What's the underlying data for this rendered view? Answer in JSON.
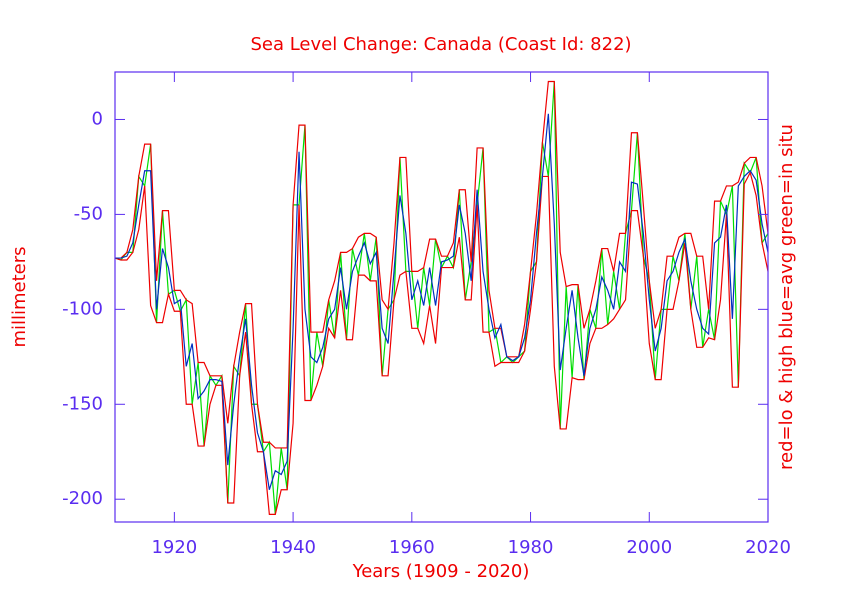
{
  "chart_data": {
    "type": "line",
    "title": "Sea Level Change: Canada (Coast Id: 822)",
    "x_label": "Years (1909 - 2020)",
    "y_label": "millimeters",
    "right_label": "red=lo & high  blue=avg  green=in situ",
    "xlim": [
      1910,
      2020
    ],
    "xticks": [
      1920,
      1940,
      1960,
      1980,
      2000,
      2020
    ],
    "ylim": [
      -212,
      25
    ],
    "yticks": [
      0,
      -50,
      -100,
      -150,
      -200
    ],
    "axis_color": "#5a2df0",
    "x": [
      1910,
      1911,
      1912,
      1913,
      1914,
      1915,
      1916,
      1917,
      1918,
      1919,
      1920,
      1921,
      1922,
      1923,
      1924,
      1925,
      1926,
      1927,
      1928,
      1929,
      1930,
      1931,
      1932,
      1933,
      1934,
      1935,
      1936,
      1937,
      1938,
      1939,
      1940,
      1941,
      1942,
      1943,
      1944,
      1945,
      1946,
      1947,
      1948,
      1949,
      1950,
      1951,
      1952,
      1953,
      1954,
      1955,
      1956,
      1957,
      1958,
      1959,
      1960,
      1961,
      1962,
      1963,
      1964,
      1965,
      1966,
      1967,
      1968,
      1969,
      1970,
      1971,
      1972,
      1973,
      1974,
      1975,
      1976,
      1977,
      1978,
      1979,
      1980,
      1981,
      1982,
      1983,
      1984,
      1985,
      1986,
      1987,
      1988,
      1989,
      1990,
      1991,
      1992,
      1993,
      1994,
      1995,
      1996,
      1997,
      1998,
      1999,
      2000,
      2001,
      2002,
      2003,
      2004,
      2005,
      2006,
      2007,
      2008,
      2009,
      2010,
      2011,
      2012,
      2013,
      2014,
      2015,
      2016,
      2017,
      2018,
      2019,
      2020
    ],
    "series": [
      {
        "color": "#00dd00",
        "values": [
          -73,
          -74,
          -70,
          -70,
          -30,
          -35,
          -13,
          -107,
          -48,
          -92,
          -90,
          -101,
          -95,
          -150,
          -128,
          -172,
          -135,
          -140,
          -135,
          -202,
          -130,
          -135,
          -97,
          -150,
          -150,
          -175,
          -170,
          -208,
          -173,
          -195,
          -45,
          -45,
          -3,
          -148,
          -112,
          -130,
          -95,
          -115,
          -70,
          -116,
          -68,
          -82,
          -60,
          -85,
          -62,
          -135,
          -100,
          -95,
          -20,
          -80,
          -80,
          -110,
          -78,
          -98,
          -63,
          -78,
          -72,
          -78,
          -37,
          -95,
          -75,
          -45,
          -15,
          -112,
          -110,
          -128,
          -125,
          -128,
          -125,
          -122,
          -80,
          -75,
          -12,
          -30,
          20,
          -163,
          -88,
          -136,
          -87,
          -137,
          -100,
          -110,
          -68,
          -108,
          -80,
          -100,
          -60,
          -48,
          -7,
          -72,
          -85,
          -137,
          -100,
          -100,
          -72,
          -85,
          -60,
          -100,
          -72,
          -120,
          -100,
          -116,
          -43,
          -50,
          -35,
          -141,
          -23,
          -28,
          -20,
          -65,
          -60
        ]
      },
      {
        "color": "#ee0000",
        "values": [
          -73,
          -74,
          -74,
          -70,
          -58,
          -35,
          -98,
          -107,
          -107,
          -92,
          -101,
          -101,
          -150,
          -150,
          -172,
          -172,
          -150,
          -140,
          -140,
          -202,
          -202,
          -135,
          -112,
          -150,
          -175,
          -175,
          -208,
          -208,
          -195,
          -195,
          -160,
          -45,
          -148,
          -148,
          -140,
          -130,
          -110,
          -115,
          -90,
          -116,
          -116,
          -82,
          -82,
          -85,
          -85,
          -135,
          -135,
          -95,
          -82,
          -80,
          -110,
          -110,
          -118,
          -98,
          -118,
          -78,
          -78,
          -78,
          -62,
          -95,
          -95,
          -45,
          -112,
          -112,
          -130,
          -128,
          -128,
          -128,
          -128,
          -122,
          -100,
          -75,
          -30,
          -30,
          -130,
          -163,
          -163,
          -136,
          -137,
          -137,
          -118,
          -110,
          -110,
          -108,
          -105,
          -100,
          -95,
          -48,
          -48,
          -72,
          -118,
          -137,
          -137,
          -100,
          -100,
          -85,
          -65,
          -100,
          -120,
          -120,
          -115,
          -116,
          -95,
          -50,
          -141,
          -141,
          -34,
          -28,
          -40,
          -65,
          -80
        ]
      },
      {
        "color": "#ee0000",
        "values": [
          -73,
          -73,
          -70,
          -58,
          -30,
          -13,
          -13,
          -85,
          -48,
          -48,
          -90,
          -90,
          -95,
          -97,
          -128,
          -128,
          -135,
          -135,
          -135,
          -160,
          -130,
          -112,
          -97,
          -97,
          -150,
          -170,
          -170,
          -173,
          -173,
          -173,
          -45,
          -3,
          -3,
          -112,
          -112,
          -112,
          -95,
          -85,
          -70,
          -70,
          -68,
          -62,
          -60,
          -60,
          -62,
          -95,
          -100,
          -65,
          -20,
          -20,
          -80,
          -80,
          -78,
          -63,
          -63,
          -72,
          -72,
          -65,
          -37,
          -37,
          -75,
          -15,
          -15,
          -90,
          -110,
          -110,
          -125,
          -125,
          -125,
          -108,
          -80,
          -50,
          -12,
          20,
          20,
          -70,
          -88,
          -87,
          -87,
          -110,
          -100,
          -85,
          -68,
          -68,
          -80,
          -60,
          -60,
          -7,
          -7,
          -45,
          -85,
          -110,
          -100,
          -72,
          -72,
          -62,
          -60,
          -60,
          -72,
          -72,
          -100,
          -43,
          -43,
          -35,
          -35,
          -33,
          -23,
          -20,
          -20,
          -35,
          -60
        ]
      },
      {
        "color": "#0030c0",
        "values": [
          -73,
          -73,
          -72,
          -65,
          -45,
          -27,
          -27,
          -100,
          -68,
          -78,
          -97,
          -95,
          -130,
          -118,
          -147,
          -143,
          -137,
          -137,
          -138,
          -182,
          -150,
          -125,
          -105,
          -140,
          -165,
          -175,
          -195,
          -185,
          -187,
          -180,
          -110,
          -17,
          -100,
          -125,
          -128,
          -120,
          -105,
          -100,
          -78,
          -100,
          -80,
          -72,
          -65,
          -76,
          -70,
          -110,
          -118,
          -80,
          -40,
          -60,
          -95,
          -85,
          -98,
          -78,
          -98,
          -75,
          -74,
          -72,
          -45,
          -60,
          -85,
          -37,
          -80,
          -100,
          -115,
          -108,
          -125,
          -127,
          -125,
          -115,
          -95,
          -60,
          -30,
          3,
          -55,
          -132,
          -110,
          -90,
          -115,
          -135,
          -110,
          -100,
          -83,
          -90,
          -100,
          -75,
          -80,
          -33,
          -34,
          -60,
          -95,
          -122,
          -110,
          -85,
          -80,
          -70,
          -63,
          -85,
          -100,
          -110,
          -113,
          -65,
          -62,
          -45,
          -105,
          -35,
          -30,
          -27,
          -32,
          -55,
          -70
        ]
      }
    ]
  }
}
